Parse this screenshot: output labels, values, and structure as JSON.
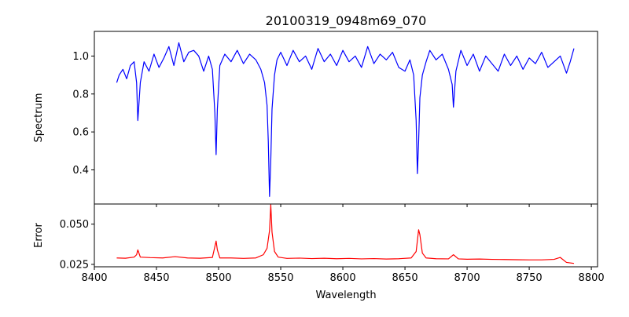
{
  "chart_data": [
    {
      "type": "line",
      "panel": "top",
      "title": "20100319_0948m69_070",
      "ylabel": "Spectrum",
      "xlabel": "",
      "xlim": [
        8400,
        8805
      ],
      "ylim": [
        0.22,
        1.13
      ],
      "x_ticks": [
        8400,
        8450,
        8500,
        8550,
        8600,
        8650,
        8700,
        8750,
        8800
      ],
      "y_ticks": [
        0.4,
        0.6,
        0.8,
        1.0
      ],
      "y_tick_labels": [
        "0.4",
        "0.6",
        "0.8",
        "1.0"
      ],
      "grid": false,
      "series": [
        {
          "color": "#0000ff",
          "x": [
            8418,
            8420,
            8423,
            8426,
            8429,
            8432,
            8434,
            8435,
            8437,
            8440,
            8444,
            8448,
            8452,
            8456,
            8460,
            8464,
            8468,
            8472,
            8476,
            8480,
            8484,
            8488,
            8492,
            8495,
            8497,
            8498,
            8499,
            8501,
            8505,
            8510,
            8515,
            8520,
            8525,
            8530,
            8534,
            8537,
            8539,
            8540,
            8541,
            8542,
            8543,
            8545,
            8547,
            8550,
            8555,
            8560,
            8565,
            8570,
            8575,
            8580,
            8585,
            8590,
            8595,
            8600,
            8605,
            8610,
            8615,
            8620,
            8625,
            8630,
            8635,
            8640,
            8645,
            8650,
            8654,
            8657,
            8659,
            8660,
            8661,
            8662,
            8664,
            8667,
            8670,
            8675,
            8680,
            8685,
            8688,
            8689,
            8691,
            8695,
            8700,
            8705,
            8710,
            8715,
            8720,
            8725,
            8730,
            8735,
            8740,
            8745,
            8750,
            8755,
            8760,
            8765,
            8770,
            8775,
            8780,
            8783,
            8786
          ],
          "y": [
            0.86,
            0.9,
            0.93,
            0.88,
            0.95,
            0.97,
            0.86,
            0.66,
            0.86,
            0.97,
            0.92,
            1.01,
            0.94,
            0.99,
            1.05,
            0.95,
            1.07,
            0.97,
            1.02,
            1.03,
            1.0,
            0.92,
            1.0,
            0.93,
            0.7,
            0.48,
            0.72,
            0.95,
            1.01,
            0.97,
            1.03,
            0.96,
            1.01,
            0.98,
            0.93,
            0.86,
            0.74,
            0.55,
            0.26,
            0.45,
            0.72,
            0.9,
            0.98,
            1.02,
            0.95,
            1.03,
            0.97,
            1.0,
            0.93,
            1.04,
            0.97,
            1.01,
            0.95,
            1.03,
            0.97,
            1.0,
            0.94,
            1.05,
            0.96,
            1.01,
            0.98,
            1.02,
            0.94,
            0.92,
            0.98,
            0.9,
            0.66,
            0.38,
            0.55,
            0.78,
            0.9,
            0.97,
            1.03,
            0.98,
            1.01,
            0.93,
            0.85,
            0.73,
            0.92,
            1.03,
            0.95,
            1.01,
            0.92,
            1.0,
            0.96,
            0.92,
            1.01,
            0.95,
            1.0,
            0.93,
            0.99,
            0.96,
            1.02,
            0.94,
            0.97,
            1.0,
            0.91,
            0.97,
            1.04
          ]
        }
      ]
    },
    {
      "type": "line",
      "panel": "bottom",
      "title": "",
      "ylabel": "Error",
      "xlabel": "Wavelength",
      "xlim": [
        8400,
        8805
      ],
      "ylim": [
        0.0235,
        0.0625
      ],
      "x_ticks": [
        8400,
        8450,
        8500,
        8550,
        8600,
        8650,
        8700,
        8750,
        8800
      ],
      "x_tick_labels": [
        "8400",
        "8450",
        "8500",
        "8550",
        "8600",
        "8650",
        "8700",
        "8750",
        "8800"
      ],
      "y_ticks": [
        0.025,
        0.05
      ],
      "y_tick_labels": [
        "0.025",
        "0.050"
      ],
      "grid": false,
      "series": [
        {
          "color": "#ff0000",
          "x": [
            8418,
            8425,
            8432,
            8434,
            8435,
            8437,
            8445,
            8455,
            8465,
            8475,
            8485,
            8495,
            8497,
            8498,
            8499,
            8501,
            8510,
            8520,
            8530,
            8536,
            8539,
            8541,
            8542,
            8543,
            8545,
            8548,
            8555,
            8565,
            8575,
            8585,
            8595,
            8605,
            8615,
            8625,
            8635,
            8645,
            8655,
            8659,
            8661,
            8662,
            8664,
            8667,
            8675,
            8685,
            8689,
            8693,
            8700,
            8710,
            8720,
            8730,
            8740,
            8750,
            8760,
            8770,
            8775,
            8780,
            8786
          ],
          "y": [
            0.029,
            0.0288,
            0.0295,
            0.031,
            0.034,
            0.0295,
            0.0292,
            0.029,
            0.0298,
            0.029,
            0.0288,
            0.0293,
            0.036,
            0.0395,
            0.034,
            0.029,
            0.029,
            0.0287,
            0.029,
            0.031,
            0.035,
            0.046,
            0.062,
            0.045,
            0.033,
            0.0295,
            0.0287,
            0.0289,
            0.0286,
            0.0288,
            0.0285,
            0.0287,
            0.0284,
            0.0286,
            0.0283,
            0.0285,
            0.029,
            0.033,
            0.0465,
            0.0435,
            0.032,
            0.029,
            0.0285,
            0.0284,
            0.031,
            0.0284,
            0.0282,
            0.0283,
            0.0281,
            0.028,
            0.0279,
            0.0278,
            0.0278,
            0.0281,
            0.0293,
            0.0262,
            0.0256
          ]
        }
      ]
    }
  ]
}
